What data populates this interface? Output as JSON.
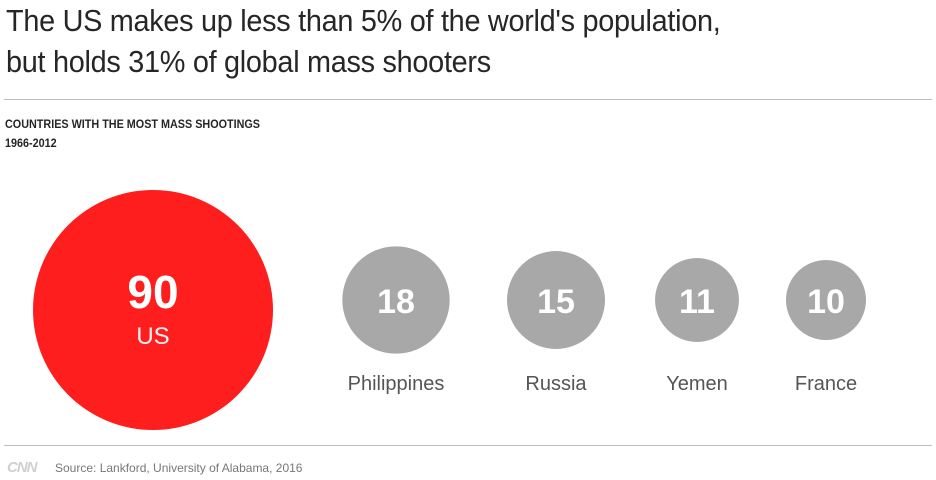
{
  "headline": {
    "line1": "The US makes up less than 5% of the world's population,",
    "line2": "but holds 31% of global mass shooters"
  },
  "chart_data": {
    "type": "bubble",
    "title": "COUNTRIES WITH THE MOST MASS SHOOTINGS",
    "subtitle": "1966-2012",
    "categories": [
      "US",
      "Philippines",
      "Russia",
      "Yemen",
      "France"
    ],
    "values": [
      90,
      18,
      15,
      11,
      10
    ],
    "highlight": "US",
    "colors": {
      "highlight": "#ff1e1e",
      "default": "#a8a8a8",
      "value_text": "#ffffff",
      "highlight_label": "#f2f2f2",
      "label": "#555555"
    }
  },
  "footer": {
    "logo": "CNN",
    "source": "Source: Lankford, University of Alabama, 2016"
  }
}
